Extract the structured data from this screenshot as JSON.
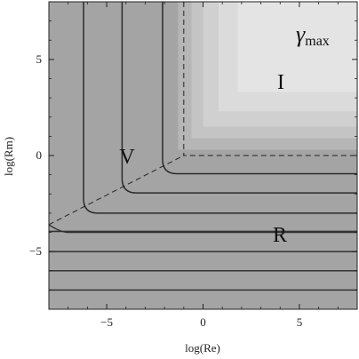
{
  "chart_data": {
    "type": "contour",
    "xlabel": "log(Re)",
    "ylabel": "log(Rm)",
    "xlim": [
      -8,
      8
    ],
    "ylim": [
      -8,
      8
    ],
    "xticks": [
      -5,
      0,
      5
    ],
    "yticks": [
      -5,
      0,
      5
    ],
    "annotations": {
      "gamma": "γ",
      "max": "max",
      "I": "I",
      "V": "V",
      "R": "R"
    },
    "shading_levels": [
      {
        "xmin": -8,
        "ymin": -8,
        "color": "#a4a4a4"
      },
      {
        "xmin": -1.3,
        "ymin": 0.3,
        "color": "#b6b6b6"
      },
      {
        "xmin": -0.6,
        "ymin": 0.9,
        "color": "#c4c4c4"
      },
      {
        "xmin": 0.0,
        "ymin": 1.5,
        "color": "#d0d0d0"
      },
      {
        "xmin": 0.8,
        "ymin": 2.3,
        "color": "#dbdbdb"
      },
      {
        "xmin": 1.8,
        "ymin": 3.3,
        "color": "#e4e4e4"
      }
    ],
    "contours": [
      {
        "x_asymptote": -6.2,
        "y_asymptote": -3.0
      },
      {
        "x_asymptote": -4.2,
        "y_asymptote": -1.95
      },
      {
        "x_asymptote": -2.1,
        "y_asymptote": -0.95
      }
    ],
    "flat_lines_y": [
      -3.95,
      -5.0,
      -6.0,
      -7.0
    ],
    "dashed_boundaries": [
      {
        "points": [
          [
            -1.0,
            8
          ],
          [
            -1.0,
            0
          ],
          [
            8,
            0
          ]
        ]
      },
      {
        "points": [
          [
            -8,
            -3.6
          ],
          [
            -1.0,
            0
          ]
        ]
      }
    ],
    "left_edge_line": {
      "points": [
        [
          -8,
          -3.6
        ],
        [
          -7.0,
          -4.0
        ],
        [
          8,
          -4.0
        ]
      ]
    }
  }
}
